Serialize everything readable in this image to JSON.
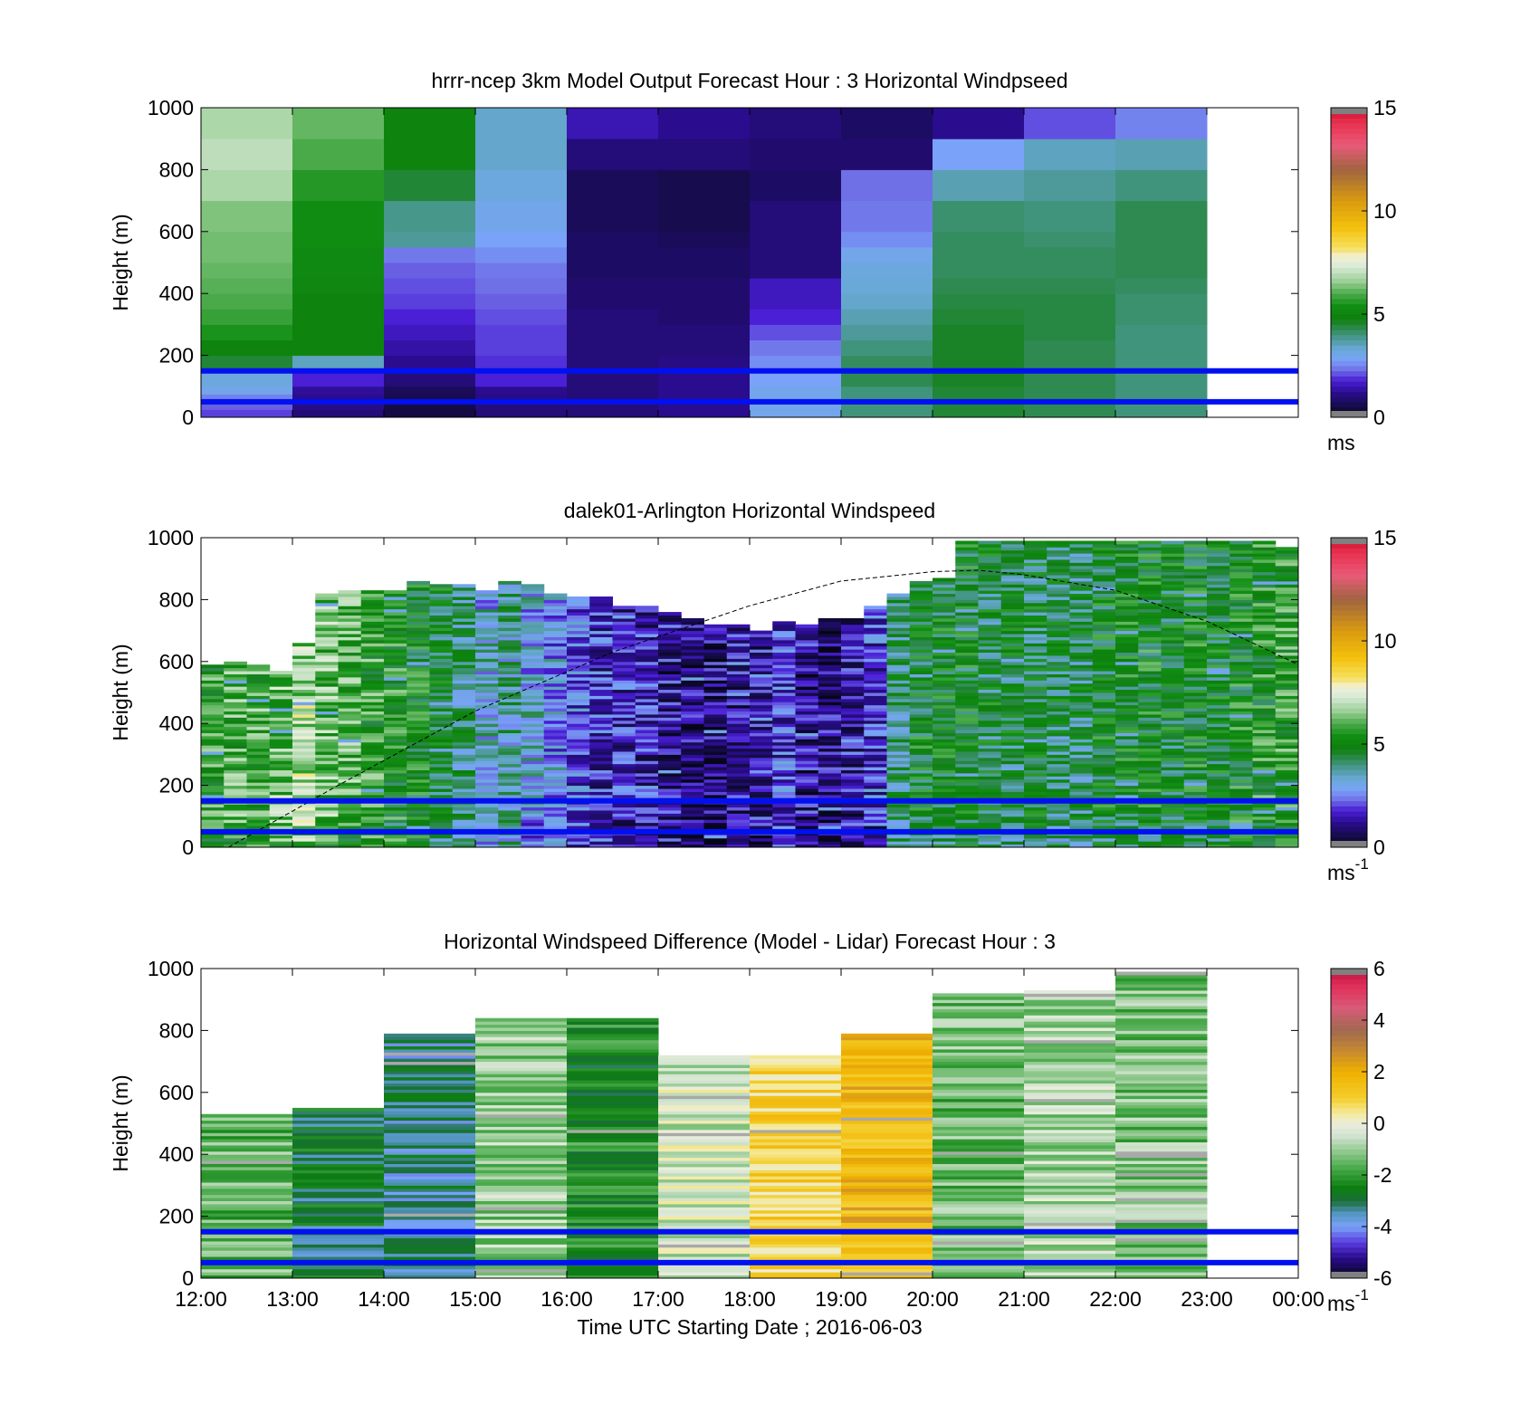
{
  "chart_data": [
    {
      "type": "heatmap",
      "title": "hrrr-ncep 3km Model Output   Forecast Hour : 3 Horizontal Windpseed",
      "ylabel": "Height (m)",
      "xlabel": "",
      "xlim": [
        12,
        24
      ],
      "ylim": [
        0,
        1000
      ],
      "yticks": [
        "0",
        "200",
        "400",
        "600",
        "800",
        "1000"
      ],
      "colorbar": {
        "range": [
          0,
          15
        ],
        "ticks": [
          "0",
          "5",
          "10",
          "15"
        ],
        "unit": "ms",
        "unit_sup": "",
        "palette": "windspeed"
      },
      "height_bins": [
        0,
        25,
        50,
        75,
        100,
        150,
        200,
        250,
        300,
        350,
        400,
        450,
        500,
        550,
        600,
        700,
        800,
        900,
        1000
      ],
      "columns": [
        {
          "x": 12,
          "values": [
            2.0,
            2.2,
            2.5,
            3.0,
            3.2,
            4.5,
            5.0,
            5.5,
            5.8,
            6.0,
            6.1,
            6.2,
            6.3,
            6.3,
            6.4,
            6.8,
            7.0,
            6.8
          ]
        },
        {
          "x": 13,
          "values": [
            1.0,
            1.1,
            1.2,
            1.3,
            1.8,
            3.5,
            5.0,
            5.0,
            5.0,
            5.0,
            5.1,
            5.2,
            5.2,
            5.3,
            5.3,
            5.6,
            6.0,
            6.2
          ]
        },
        {
          "x": 14,
          "values": [
            0.5,
            0.5,
            0.6,
            0.7,
            1.0,
            1.2,
            1.4,
            1.6,
            1.8,
            2.0,
            2.1,
            2.2,
            2.4,
            3.8,
            3.9,
            4.5,
            5.0,
            5.0
          ]
        },
        {
          "x": 15,
          "values": [
            1.0,
            1.0,
            1.1,
            1.2,
            1.8,
            1.9,
            2.0,
            2.0,
            2.1,
            2.2,
            2.3,
            2.4,
            2.6,
            2.8,
            3.0,
            3.2,
            3.4,
            3.4
          ]
        },
        {
          "x": 16,
          "values": [
            1.0,
            1.0,
            1.0,
            1.0,
            1.0,
            1.0,
            1.0,
            1.0,
            1.0,
            0.9,
            0.9,
            0.8,
            0.8,
            0.8,
            0.7,
            0.7,
            1.0,
            1.5
          ]
        },
        {
          "x": 17,
          "values": [
            1.2,
            1.2,
            1.2,
            1.2,
            1.2,
            1.1,
            1.0,
            1.0,
            0.9,
            0.9,
            0.9,
            0.8,
            0.8,
            0.7,
            0.6,
            0.6,
            1.0,
            1.2
          ]
        },
        {
          "x": 18,
          "values": [
            3.0,
            3.0,
            3.0,
            3.0,
            2.8,
            2.6,
            2.4,
            2.1,
            1.8,
            1.6,
            1.6,
            1.0,
            1.0,
            1.0,
            1.0,
            0.8,
            0.9,
            1.0
          ]
        },
        {
          "x": 19,
          "values": [
            4.0,
            4.0,
            4.0,
            4.0,
            4.3,
            4.2,
            4.0,
            3.8,
            3.6,
            3.4,
            3.3,
            3.2,
            3.0,
            2.6,
            2.4,
            2.3,
            0.9,
            0.8
          ]
        },
        {
          "x": 20,
          "values": [
            4.5,
            4.5,
            4.5,
            4.5,
            4.6,
            4.6,
            4.6,
            4.6,
            4.5,
            4.4,
            4.3,
            4.2,
            4.2,
            4.2,
            4.1,
            3.6,
            2.8,
            1.2
          ]
        },
        {
          "x": 21,
          "values": [
            4.3,
            4.3,
            4.3,
            4.3,
            4.3,
            4.3,
            4.3,
            4.4,
            4.4,
            4.4,
            4.3,
            4.2,
            4.2,
            4.1,
            4.0,
            3.8,
            3.5,
            2.1
          ]
        },
        {
          "x": 22,
          "values": [
            4.0,
            4.0,
            4.0,
            4.0,
            4.0,
            4.0,
            4.0,
            4.0,
            4.1,
            4.1,
            4.2,
            4.3,
            4.3,
            4.3,
            4.3,
            4.0,
            3.6,
            2.5
          ]
        }
      ],
      "hlines": [
        150,
        50
      ]
    },
    {
      "type": "heatmap",
      "title": "dalek01-Arlington  Horizontal Windspeed",
      "ylabel": "Height (m)",
      "xlabel": "",
      "xlim": [
        12,
        24
      ],
      "ylim": [
        0,
        1000
      ],
      "yticks": [
        "0",
        "200",
        "400",
        "600",
        "800",
        "1000"
      ],
      "colorbar": {
        "range": [
          0,
          15
        ],
        "ticks": [
          "0",
          "5",
          "10",
          "15"
        ],
        "unit": "ms",
        "unit_sup": "-1",
        "palette": "windspeed"
      },
      "column_width_h": 0.25,
      "columns": [
        {
          "x": 12.0,
          "top": 590,
          "mean": 5.6
        },
        {
          "x": 12.25,
          "top": 600,
          "mean": 5.9
        },
        {
          "x": 12.5,
          "top": 590,
          "mean": 5.9
        },
        {
          "x": 12.75,
          "top": 570,
          "mean": 6.3
        },
        {
          "x": 13.0,
          "top": 660,
          "mean": 6.8
        },
        {
          "x": 13.25,
          "top": 820,
          "mean": 6.2
        },
        {
          "x": 13.5,
          "top": 830,
          "mean": 6.0
        },
        {
          "x": 13.75,
          "top": 830,
          "mean": 5.6
        },
        {
          "x": 14.0,
          "top": 830,
          "mean": 5.3
        },
        {
          "x": 14.25,
          "top": 860,
          "mean": 5.0
        },
        {
          "x": 14.5,
          "top": 850,
          "mean": 4.6
        },
        {
          "x": 14.75,
          "top": 850,
          "mean": 4.0
        },
        {
          "x": 15.0,
          "top": 830,
          "mean": 3.2
        },
        {
          "x": 15.25,
          "top": 860,
          "mean": 3.6
        },
        {
          "x": 15.5,
          "top": 850,
          "mean": 3.1
        },
        {
          "x": 15.75,
          "top": 820,
          "mean": 2.8
        },
        {
          "x": 16.0,
          "top": 810,
          "mean": 2.3
        },
        {
          "x": 16.25,
          "top": 810,
          "mean": 1.8
        },
        {
          "x": 16.5,
          "top": 780,
          "mean": 1.7
        },
        {
          "x": 16.75,
          "top": 780,
          "mean": 1.6
        },
        {
          "x": 17.0,
          "top": 760,
          "mean": 1.3
        },
        {
          "x": 17.25,
          "top": 740,
          "mean": 1.0
        },
        {
          "x": 17.5,
          "top": 720,
          "mean": 1.0
        },
        {
          "x": 17.75,
          "top": 720,
          "mean": 1.4
        },
        {
          "x": 18.0,
          "top": 700,
          "mean": 1.5
        },
        {
          "x": 18.25,
          "top": 730,
          "mean": 2.0
        },
        {
          "x": 18.5,
          "top": 720,
          "mean": 1.2
        },
        {
          "x": 18.75,
          "top": 740,
          "mean": 1.0
        },
        {
          "x": 19.0,
          "top": 740,
          "mean": 1.4
        },
        {
          "x": 19.25,
          "top": 780,
          "mean": 2.0
        },
        {
          "x": 19.5,
          "top": 820,
          "mean": 4.0
        },
        {
          "x": 19.75,
          "top": 860,
          "mean": 4.8
        },
        {
          "x": 20.0,
          "top": 870,
          "mean": 4.8
        },
        {
          "x": 20.25,
          "top": 990,
          "mean": 4.8
        },
        {
          "x": 20.5,
          "top": 990,
          "mean": 4.6
        },
        {
          "x": 20.75,
          "top": 990,
          "mean": 4.4
        },
        {
          "x": 21.0,
          "top": 990,
          "mean": 4.5
        },
        {
          "x": 21.25,
          "top": 990,
          "mean": 4.4
        },
        {
          "x": 21.5,
          "top": 990,
          "mean": 4.3
        },
        {
          "x": 21.75,
          "top": 990,
          "mean": 4.8
        },
        {
          "x": 22.0,
          "top": 990,
          "mean": 4.9
        },
        {
          "x": 22.25,
          "top": 990,
          "mean": 5.0
        },
        {
          "x": 22.5,
          "top": 990,
          "mean": 4.7
        },
        {
          "x": 22.75,
          "top": 990,
          "mean": 5.0
        },
        {
          "x": 23.0,
          "top": 990,
          "mean": 4.8
        },
        {
          "x": 23.25,
          "top": 990,
          "mean": 5.1
        },
        {
          "x": 23.5,
          "top": 990,
          "mean": 5.3
        },
        {
          "x": 23.75,
          "top": 970,
          "mean": 5.5
        }
      ],
      "boundary_layer_curve": {
        "x": [
          12.3,
          13.5,
          15.0,
          16.5,
          18.0,
          19.0,
          20.0,
          20.5,
          21.0,
          22.0,
          23.0,
          24.0
        ],
        "y": [
          0,
          200,
          440,
          630,
          780,
          860,
          890,
          895,
          880,
          830,
          730,
          590
        ]
      },
      "hlines": [
        150,
        50
      ]
    },
    {
      "type": "heatmap",
      "title": "Horizontal Windspeed Difference (Model - Lidar) Forecast Hour : 3",
      "ylabel": "Height (m)",
      "xlabel": "Time UTC  Starting Date ; 2016-06-03",
      "xlim": [
        12,
        24
      ],
      "ylim": [
        0,
        1000
      ],
      "yticks": [
        "0",
        "200",
        "400",
        "600",
        "800",
        "1000"
      ],
      "xticks": [
        "12:00",
        "13:00",
        "14:00",
        "15:00",
        "16:00",
        "17:00",
        "18:00",
        "19:00",
        "20:00",
        "21:00",
        "22:00",
        "23:00",
        "00:00"
      ],
      "colorbar": {
        "range": [
          -6,
          6
        ],
        "ticks": [
          "-6",
          "-4",
          "-2",
          "0",
          "2",
          "4",
          "6"
        ],
        "unit": "ms",
        "unit_sup": "-1",
        "palette": "difference"
      },
      "columns": [
        {
          "x": 12,
          "top": 530,
          "mean": -1.5
        },
        {
          "x": 13,
          "top": 545,
          "mean": -2.9
        },
        {
          "x": 14,
          "top": 790,
          "mean": -3.3
        },
        {
          "x": 15,
          "top": 835,
          "mean": -1.0
        },
        {
          "x": 16,
          "top": 835,
          "mean": -2.3
        },
        {
          "x": 17,
          "top": 715,
          "mean": -0.4
        },
        {
          "x": 18,
          "top": 720,
          "mean": 0.9
        },
        {
          "x": 19,
          "top": 790,
          "mean": 1.7
        },
        {
          "x": 20,
          "top": 920,
          "mean": -1.4
        },
        {
          "x": 21,
          "top": 925,
          "mean": -0.8
        },
        {
          "x": 22,
          "top": 990,
          "mean": -1.3
        }
      ],
      "hlines": [
        150,
        50
      ]
    }
  ]
}
